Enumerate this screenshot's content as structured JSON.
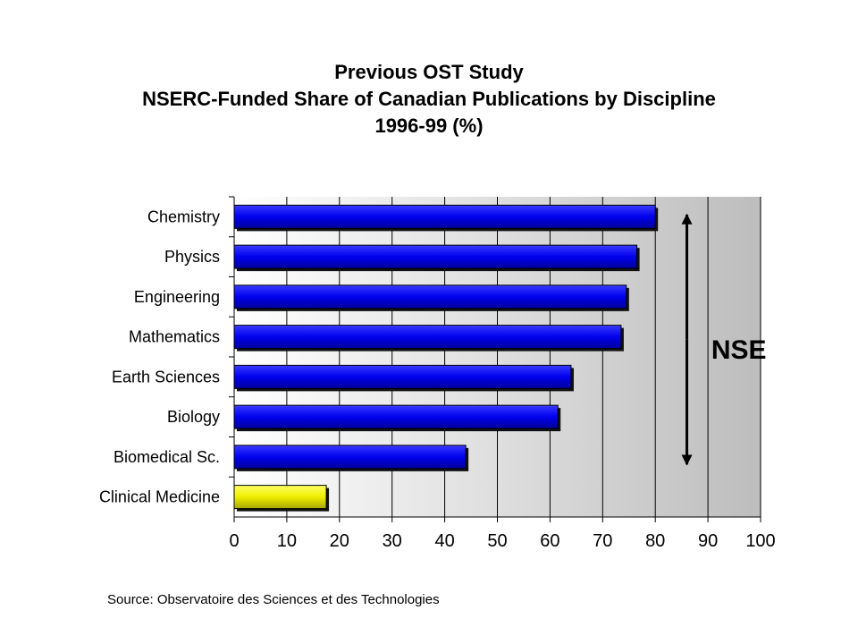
{
  "header": {
    "line1": "Previous OST Study",
    "line2": "NSERC-Funded Share of Canadian Publications by Discipline",
    "line3": "1996-99 (%)"
  },
  "source": "Source: Observatoire des Sciences et des Technologies",
  "chart_data": {
    "type": "bar",
    "orientation": "horizontal",
    "title": "Previous OST Study NSERC-Funded Share of Canadian Publications by Discipline 1996-99 (%)",
    "categories": [
      "Chemistry",
      "Physics",
      "Engineering",
      "Mathematics",
      "Earth Sciences",
      "Biology",
      "Biomedical Sc.",
      "Clinical Medicine"
    ],
    "values": [
      80,
      76.5,
      74.5,
      73.5,
      64,
      61.5,
      44,
      17.5
    ],
    "colors": [
      "#0000ee",
      "#0000ee",
      "#0000ee",
      "#0000ee",
      "#0000ee",
      "#0000ee",
      "#0000ee",
      "#eeee00"
    ],
    "xlim": [
      0,
      100
    ],
    "xticks": [
      0,
      10,
      20,
      30,
      40,
      50,
      60,
      70,
      80,
      90,
      100
    ],
    "grid": true,
    "annotation": {
      "text": "NSE",
      "spans_categories": [
        "Chemistry",
        "Biomedical Sc."
      ],
      "x_value": 86
    },
    "colors_theme": {
      "blue": "#0000ee",
      "yellow": "#eeee00",
      "grid": "#000000",
      "background_gradient": [
        "#ffffff",
        "#bdbdbd"
      ]
    }
  }
}
